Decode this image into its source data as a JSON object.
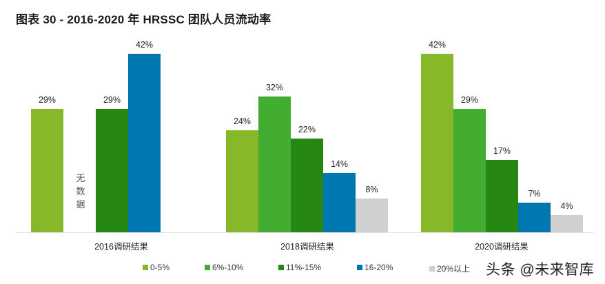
{
  "title": "图表 30 - 2016-2020 年 HRSSC 团队人员流动率",
  "no_data_text": [
    "无",
    "数",
    "据"
  ],
  "watermark": "头条 @未来智库",
  "categories": [
    "2016调研结果",
    "2018调研结果",
    "2020调研结果"
  ],
  "legend": [
    {
      "label": "0-5%",
      "color": "#86b82a"
    },
    {
      "label": "6%-10%",
      "color": "#43ad32"
    },
    {
      "label": "11%-15%",
      "color": "#268812"
    },
    {
      "label": "16-20%",
      "color": "#0077ae"
    },
    {
      "label": "20%以上",
      "color": "#d0d0d0"
    }
  ],
  "bars": {
    "y2016": [
      {
        "series": "0-5%",
        "value_label": "29%"
      },
      {
        "series": "6%-10%",
        "value_label": ""
      },
      {
        "series": "11%-15%",
        "value_label": "29%"
      },
      {
        "series": "16-20%",
        "value_label": "42%"
      }
    ],
    "y2018": [
      {
        "series": "0-5%",
        "value_label": "24%"
      },
      {
        "series": "6%-10%",
        "value_label": "32%"
      },
      {
        "series": "11%-15%",
        "value_label": "22%"
      },
      {
        "series": "16-20%",
        "value_label": "14%"
      },
      {
        "series": "20%以上",
        "value_label": "8%"
      }
    ],
    "y2020": [
      {
        "series": "0-5%",
        "value_label": "42%"
      },
      {
        "series": "6%-10%",
        "value_label": "29%"
      },
      {
        "series": "11%-15%",
        "value_label": "17%"
      },
      {
        "series": "16-20%",
        "value_label": "7%"
      },
      {
        "series": "20%以上",
        "value_label": "4%"
      }
    ]
  },
  "chart_data": {
    "type": "bar",
    "title": "图表 30 - 2016-2020 年 HRSSC 团队人员流动率",
    "categories": [
      "2016调研结果",
      "2018调研结果",
      "2020调研结果"
    ],
    "series": [
      {
        "name": "0-5%",
        "color": "#86b82a",
        "values": [
          29,
          24,
          42
        ]
      },
      {
        "name": "6%-10%",
        "color": "#43ad32",
        "values": [
          null,
          32,
          29
        ]
      },
      {
        "name": "11%-15%",
        "color": "#268812",
        "values": [
          29,
          22,
          17
        ]
      },
      {
        "name": "16-20%",
        "color": "#0077ae",
        "values": [
          42,
          14,
          7
        ]
      },
      {
        "name": "20%以上",
        "color": "#d0d0d0",
        "values": [
          null,
          8,
          4
        ]
      }
    ],
    "annotations": [
      "2016调研结果: 6%-10% 及 20%以上 无数据"
    ],
    "xlabel": "",
    "ylabel": "",
    "ylim": [
      0,
      42
    ],
    "grid": false,
    "legend_position": "bottom",
    "value_format": "percent"
  }
}
